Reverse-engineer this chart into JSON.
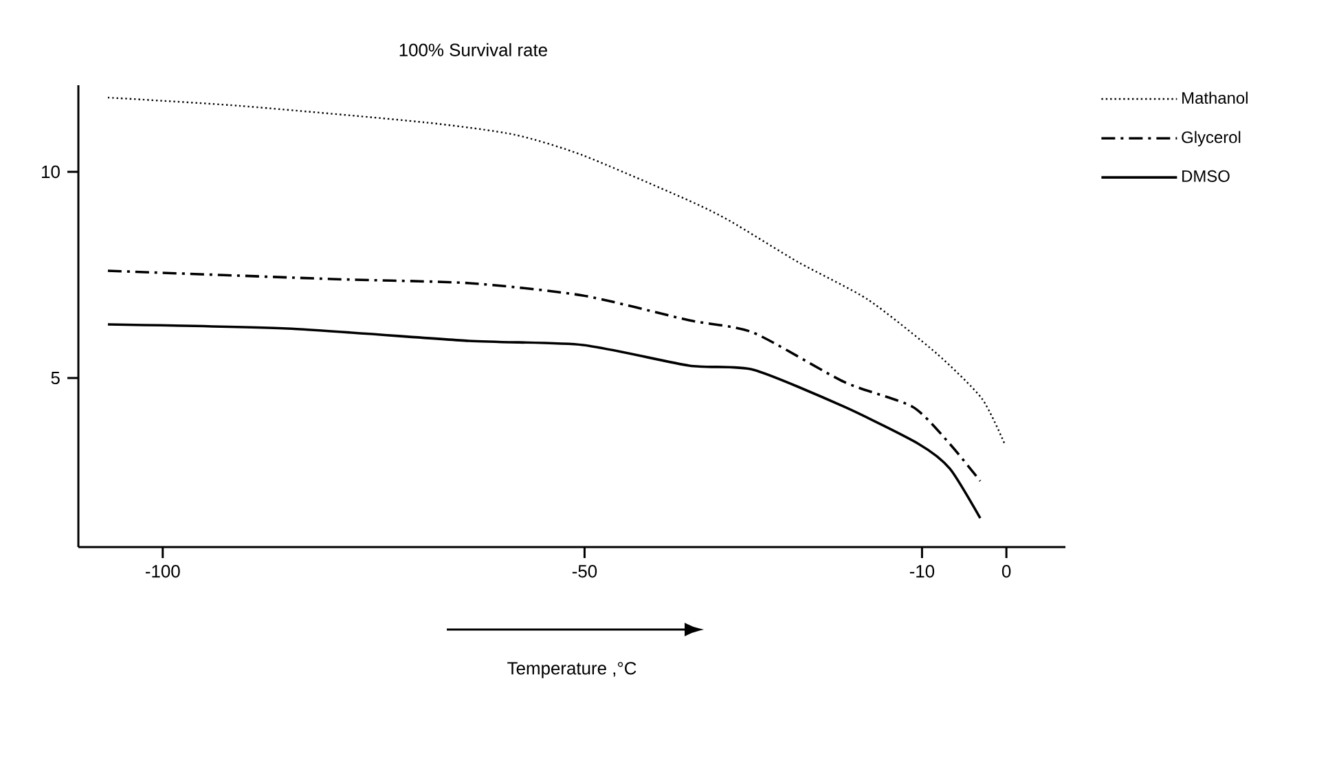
{
  "chart_data": {
    "type": "line",
    "title": "100% Survival rate",
    "xlabel": "Temperature ,°C",
    "xlim": [
      -110,
      7
    ],
    "ylim": [
      0.9,
      12.1
    ],
    "xticks": [
      -100,
      -50,
      -10,
      0
    ],
    "yticks": [
      5,
      10
    ],
    "grid": false,
    "legend": "top right",
    "series": [
      {
        "name": "Mathanol",
        "color": "#000000",
        "line_style": "dotted",
        "x": [
          -106.5,
          -90.9,
          -69,
          -58.3,
          -50.2,
          -37.6,
          -32.7,
          -24.6,
          -16.4,
          -8.3,
          -2.9,
          -0.2
        ],
        "values": [
          11.8,
          11.6,
          11.2,
          10.9,
          10.4,
          9.3,
          8.8,
          7.8,
          6.9,
          5.6,
          4.5,
          3.4
        ]
      },
      {
        "name": "Glycerol",
        "color": "#000000",
        "line_style": "dashdot",
        "x": [
          -106.5,
          -80,
          -63.7,
          -50.2,
          -37.6,
          -30,
          -19.2,
          -11.1,
          -6.7,
          -3.1
        ],
        "values": [
          7.6,
          7.4,
          7.3,
          7.0,
          6.4,
          6.1,
          4.9,
          4.3,
          3.4,
          2.5
        ]
      },
      {
        "name": "DMSO",
        "color": "#000000",
        "line_style": "solid",
        "x": [
          -106.5,
          -85.3,
          -63.7,
          -50.2,
          -37.6,
          -30,
          -19.2,
          -10.4,
          -6.7,
          -3.1
        ],
        "values": [
          6.3,
          6.2,
          5.9,
          5.8,
          5.3,
          5.2,
          4.3,
          3.4,
          2.8,
          1.6
        ]
      }
    ]
  }
}
